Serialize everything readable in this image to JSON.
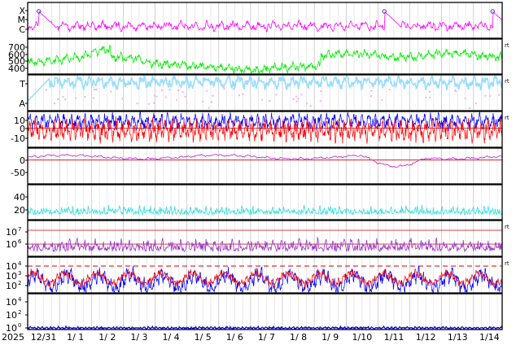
{
  "chart_data": {
    "type": "line",
    "x_start_year": "2025",
    "x_tick_labels": [
      "12/31",
      "1/ 1",
      "1/ 2",
      "1/ 3",
      "1/ 4",
      "1/ 5",
      "1/ 6",
      "1/ 7",
      "1/ 8",
      "1/ 9",
      "1/10",
      "1/11",
      "1/12",
      "1/13",
      "1/14"
    ],
    "panels": [
      {
        "id": "xray_class",
        "y_tick_labels": [
          "X",
          "M",
          "C"
        ],
        "grid": true,
        "right_marker": "",
        "colors": {
          "series": "#ff00ff",
          "flare_marker": "#3333cc"
        },
        "flare_markers_day": [
          0.35,
          11.2,
          14.6
        ]
      },
      {
        "id": "solar_wind_speed",
        "y_tick_labels": [
          "700",
          "600",
          "500",
          "400"
        ],
        "ylim": [
          330,
          760
        ],
        "right_marker": "rt",
        "colors": {
          "series": "#00ee00"
        }
      },
      {
        "id": "imf_direction",
        "y_tick_labels": [
          "T",
          "A"
        ],
        "right_marker": "rt",
        "colors": {
          "toward": "#99ddff",
          "away": "#f0b0f0"
        }
      },
      {
        "id": "imf_components",
        "y_tick_labels": [
          "10",
          "0",
          "-10"
        ],
        "ylim": [
          -17,
          15
        ],
        "right_marker": "rt",
        "colors": {
          "bt": "#0000ff",
          "bz": "#ff0000",
          "zero_line": "#cc0000"
        }
      },
      {
        "id": "dst_index",
        "y_tick_labels": [
          "0",
          "-50"
        ],
        "ylim": [
          -80,
          40
        ],
        "right_marker": "",
        "colors": {
          "series": "#cc33cc",
          "zero_line": "#cc0000"
        }
      },
      {
        "id": "kp_like",
        "y_tick_labels": [
          "40",
          "20"
        ],
        "ylim": [
          0,
          55
        ],
        "right_marker": "",
        "colors": {
          "series": "#33dddd"
        }
      },
      {
        "id": "proton_flux",
        "y_tick_labels": [
          "10",
          "10"
        ],
        "y_tick_exponents": [
          "7",
          "6"
        ],
        "right_marker": "rt",
        "colors": {
          "series": "#9933cc",
          "threshold": "#cc0000"
        }
      },
      {
        "id": "electron_flux",
        "y_tick_labels": [
          "10",
          "10",
          "10"
        ],
        "y_tick_exponents": [
          "4",
          "3",
          "2"
        ],
        "right_marker": "rt",
        "colors": {
          "low": "#0000ff",
          "high": "#ff0000",
          "alert_line": "#cc0000"
        }
      },
      {
        "id": "neutron_or_particle",
        "y_tick_labels": [
          "10",
          "10",
          "10"
        ],
        "y_tick_exponents": [
          "4",
          "2",
          "0"
        ],
        "right_marker": "",
        "colors": {
          "series": "#0000cc"
        }
      }
    ]
  }
}
